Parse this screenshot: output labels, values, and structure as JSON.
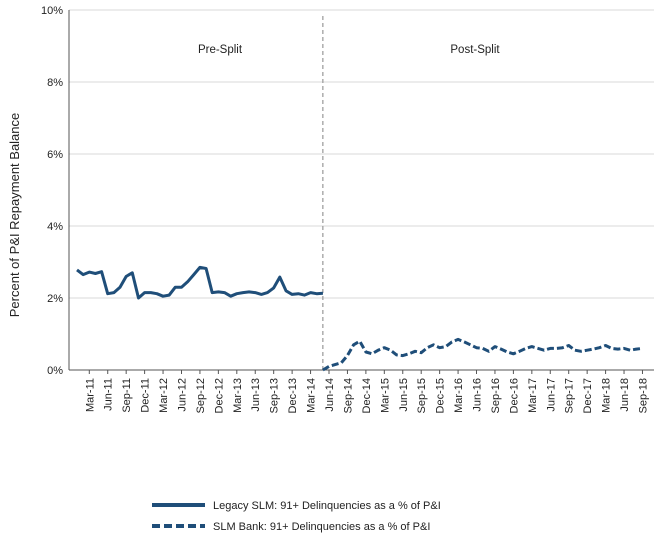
{
  "chart_data": {
    "type": "line",
    "ylabel": "Percent of P&I Repayment  Balance",
    "ylim": [
      0,
      10
    ],
    "yticks": [
      "0%",
      "2%",
      "4%",
      "6%",
      "8%",
      "10%"
    ],
    "yvalues": [
      0,
      2,
      4,
      6,
      8,
      10
    ],
    "xticks": [
      "Mar-11",
      "Jun-11",
      "Sep-11",
      "Dec-11",
      "Mar-12",
      "Jun-12",
      "Sep-12",
      "Dec-12",
      "Mar-13",
      "Jun-13",
      "Sep-13",
      "Dec-13",
      "Mar-14",
      "Jun-14",
      "Sep-14",
      "Dec-14",
      "Mar-15",
      "Jun-15",
      "Sep-15",
      "Dec-15",
      "Mar-16",
      "Jun-16",
      "Sep-16",
      "Dec-16",
      "Mar-17",
      "Jun-17",
      "Sep-17",
      "Dec-17",
      "Mar-18",
      "Jun-18",
      "Sep-18"
    ],
    "annotations": [
      "Pre-Split",
      "Post-Split"
    ],
    "split_at": "May-14",
    "series": [
      {
        "name": "Legacy SLM: 91+ Delinquencies as a % of P&I",
        "style": "solid",
        "color": "#1f4e79",
        "x": [
          "Jan-11",
          "Feb-11",
          "Mar-11",
          "Apr-11",
          "May-11",
          "Jun-11",
          "Jul-11",
          "Aug-11",
          "Sep-11",
          "Oct-11",
          "Nov-11",
          "Dec-11",
          "Jan-12",
          "Feb-12",
          "Mar-12",
          "Apr-12",
          "May-12",
          "Jun-12",
          "Jul-12",
          "Aug-12",
          "Sep-12",
          "Oct-12",
          "Nov-12",
          "Dec-12",
          "Jan-13",
          "Feb-13",
          "Mar-13",
          "Apr-13",
          "May-13",
          "Jun-13",
          "Jul-13",
          "Aug-13",
          "Sep-13",
          "Oct-13",
          "Nov-13",
          "Dec-13",
          "Jan-14",
          "Feb-14",
          "Mar-14",
          "Apr-14",
          "May-14"
        ],
        "values": [
          2.78,
          2.65,
          2.72,
          2.68,
          2.73,
          2.12,
          2.15,
          2.3,
          2.6,
          2.7,
          2.0,
          2.15,
          2.15,
          2.12,
          2.05,
          2.08,
          2.3,
          2.3,
          2.45,
          2.65,
          2.85,
          2.82,
          2.15,
          2.17,
          2.15,
          2.05,
          2.12,
          2.15,
          2.17,
          2.15,
          2.1,
          2.15,
          2.28,
          2.58,
          2.2,
          2.1,
          2.12,
          2.08,
          2.15,
          2.12,
          2.13
        ]
      },
      {
        "name": "SLM Bank: 91+ Delinquencies as a % of P&I",
        "style": "dashed",
        "color": "#1f4e79",
        "x": [
          "May-14",
          "Jun-14",
          "Jul-14",
          "Aug-14",
          "Sep-14",
          "Oct-14",
          "Nov-14",
          "Dec-14",
          "Jan-15",
          "Feb-15",
          "Mar-15",
          "Apr-15",
          "May-15",
          "Jun-15",
          "Jul-15",
          "Aug-15",
          "Sep-15",
          "Oct-15",
          "Nov-15",
          "Dec-15",
          "Jan-16",
          "Feb-16",
          "Mar-16",
          "Apr-16",
          "May-16",
          "Jun-16",
          "Jul-16",
          "Aug-16",
          "Sep-16",
          "Oct-16",
          "Nov-16",
          "Dec-16",
          "Jan-17",
          "Feb-17",
          "Mar-17",
          "Apr-17",
          "May-17",
          "Jun-17",
          "Jul-17",
          "Aug-17",
          "Sep-17",
          "Oct-17",
          "Nov-17",
          "Dec-17",
          "Jan-18",
          "Feb-18",
          "Mar-18",
          "Apr-18",
          "May-18",
          "Jun-18",
          "Jul-18",
          "Aug-18",
          "Sep-18"
        ],
        "values": [
          0.0,
          0.1,
          0.15,
          0.2,
          0.4,
          0.7,
          0.8,
          0.5,
          0.45,
          0.55,
          0.62,
          0.55,
          0.42,
          0.4,
          0.45,
          0.52,
          0.48,
          0.62,
          0.7,
          0.62,
          0.65,
          0.78,
          0.85,
          0.78,
          0.7,
          0.62,
          0.6,
          0.52,
          0.65,
          0.58,
          0.5,
          0.45,
          0.52,
          0.6,
          0.65,
          0.6,
          0.55,
          0.6,
          0.6,
          0.62,
          0.68,
          0.55,
          0.52,
          0.55,
          0.58,
          0.62,
          0.68,
          0.6,
          0.58,
          0.6,
          0.55,
          0.58,
          0.6
        ]
      }
    ]
  }
}
